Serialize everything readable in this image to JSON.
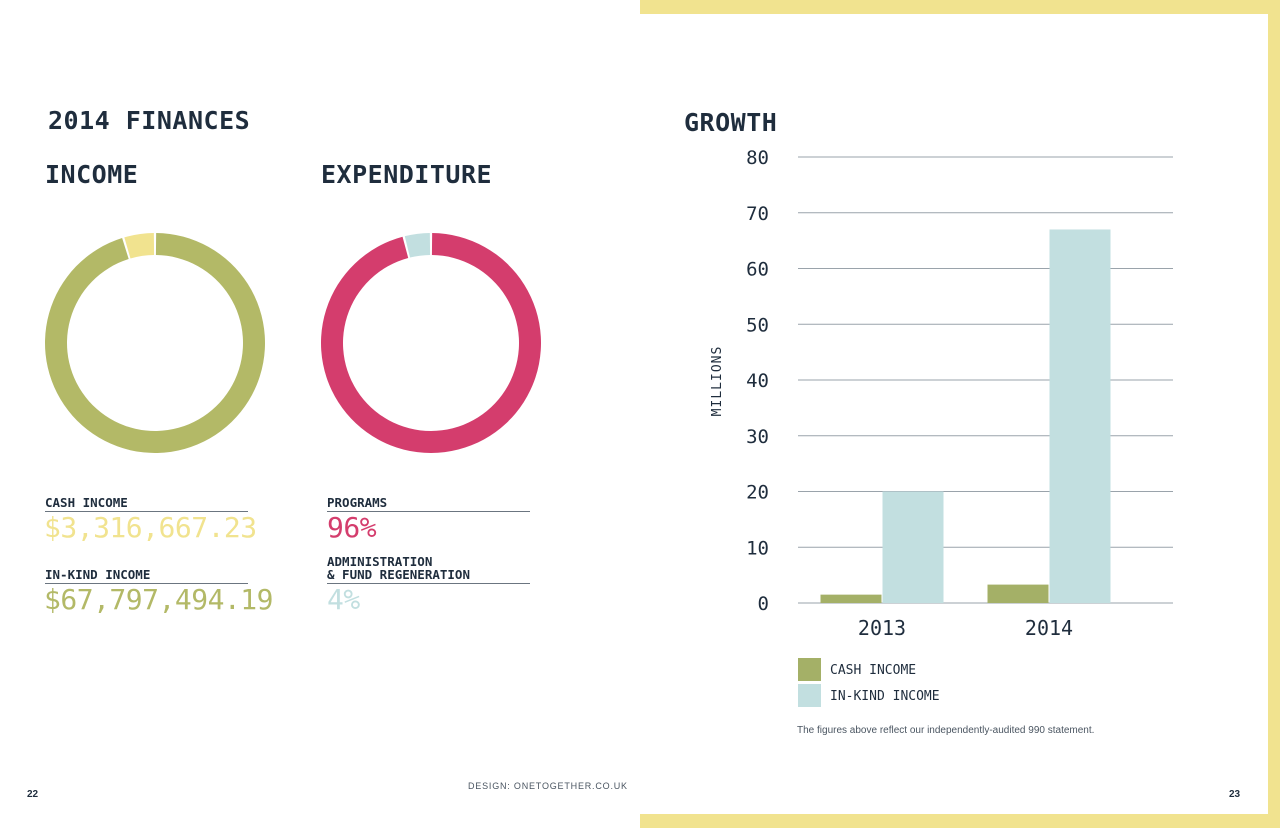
{
  "left_page": {
    "title": "2014 FINANCES",
    "income": {
      "heading": "INCOME",
      "cash_label": "CASH INCOME",
      "cash_value": "$3,316,667.23",
      "inkind_label": "IN-KIND INCOME",
      "inkind_value": "$67,797,494.19"
    },
    "expenditure": {
      "heading": "EXPENDITURE",
      "programs_label": "PROGRAMS",
      "programs_value": "96%",
      "admin_label_line1": "ADMINISTRATION",
      "admin_label_line2": "& FUND REGENERATION",
      "admin_value": "4%"
    },
    "page_number": "22",
    "credit": "DESIGN: ONETOGETHER.CO.UK"
  },
  "right_page": {
    "title": "GROWTH",
    "footnote": "The figures above reflect our independently-audited 990 statement.",
    "page_number": "23"
  },
  "colors": {
    "navy": "#1f2d3d",
    "olive": "#b3b967",
    "yellow": "#f1e38f",
    "crimson": "#d43d6d",
    "light_blue": "#c2dfe0",
    "cash_bar": "#a4b067"
  },
  "chart_data": [
    {
      "type": "pie",
      "donut": true,
      "title": "INCOME",
      "labels": [
        "CASH INCOME",
        "IN-KIND INCOME"
      ],
      "values": [
        3316667.23,
        67797494.19
      ],
      "colors": [
        "#f1e38f",
        "#b3b967"
      ]
    },
    {
      "type": "pie",
      "donut": true,
      "title": "EXPENDITURE",
      "labels": [
        "PROGRAMS",
        "ADMINISTRATION & FUND REGENERATION"
      ],
      "values": [
        96,
        4
      ],
      "colors": [
        "#d43d6d",
        "#c2dfe0"
      ]
    },
    {
      "type": "bar",
      "title": "GROWTH",
      "categories": [
        "2013",
        "2014"
      ],
      "series": [
        {
          "name": "CASH INCOME",
          "values": [
            1.5,
            3.3
          ],
          "color": "#a4b067"
        },
        {
          "name": "IN-KIND INCOME",
          "values": [
            20,
            67
          ],
          "color": "#c2dfe0"
        }
      ],
      "ylabel": "MILLIONS",
      "ylim": [
        0,
        80
      ],
      "yticks": [
        0,
        10,
        20,
        30,
        40,
        50,
        60,
        70,
        80
      ],
      "grid": true,
      "legend": "bottom-left"
    }
  ]
}
